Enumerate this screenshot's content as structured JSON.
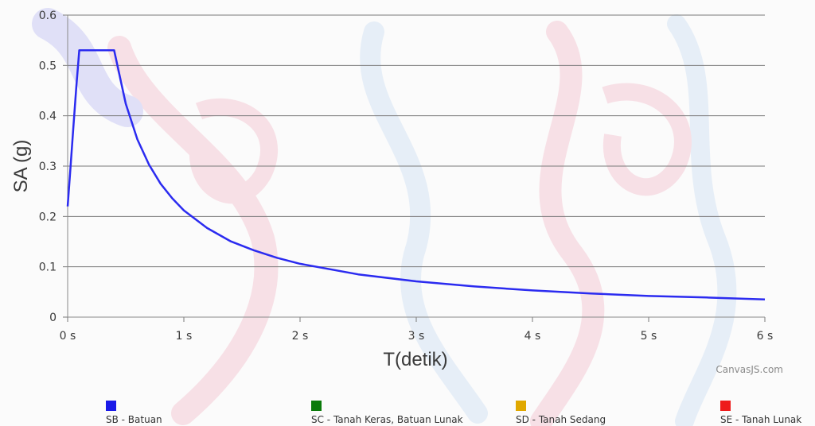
{
  "credit": "CanvasJS.com",
  "chart_data": {
    "type": "line",
    "xlabel": "T(detik)",
    "ylabel": "SA (g)",
    "xlim": [
      0,
      6
    ],
    "ylim": [
      0,
      0.6
    ],
    "x_ticks": [
      0,
      1,
      2,
      3,
      4,
      5,
      6
    ],
    "x_tick_labels": [
      "0 s",
      "1 s",
      "2 s",
      "3 s",
      "4 s",
      "5 s",
      "6 s"
    ],
    "y_ticks": [
      0,
      0.1,
      0.2,
      0.3,
      0.4,
      0.5,
      0.6
    ],
    "y_tick_labels": [
      "0",
      "0.1",
      "0.2",
      "0.3",
      "0.4",
      "0.5",
      "0.6"
    ],
    "grid": "horizontal",
    "legend_position": "bottom",
    "series": [
      {
        "name": "SB - Batuan",
        "color": "#2b2bf0",
        "x": [
          0,
          0.025,
          0.05,
          0.075,
          0.1,
          0.12,
          0.2,
          0.3,
          0.4,
          0.5,
          0.6,
          0.7,
          0.8,
          0.9,
          1.0,
          1.2,
          1.4,
          1.6,
          1.8,
          2.0,
          2.5,
          3.0,
          3.5,
          4.0,
          4.5,
          5.0,
          5.5,
          6.0
        ],
        "y": [
          0.22,
          0.3,
          0.38,
          0.46,
          0.53,
          0.53,
          0.53,
          0.53,
          0.53,
          0.424,
          0.353,
          0.303,
          0.265,
          0.236,
          0.212,
          0.177,
          0.151,
          0.133,
          0.118,
          0.106,
          0.085,
          0.071,
          0.061,
          0.053,
          0.047,
          0.042,
          0.039,
          0.035
        ]
      }
    ],
    "legend": [
      {
        "name": "SB - Batuan",
        "color": "#1a1ae8"
      },
      {
        "name": "SC - Tanah Keras, Batuan Lunak",
        "color": "#0a7a0a"
      },
      {
        "name": "SD - Tanah Sedang",
        "color": "#e0a800"
      },
      {
        "name": "SE - Tanah Lunak",
        "color": "#ee1c1c"
      }
    ]
  }
}
